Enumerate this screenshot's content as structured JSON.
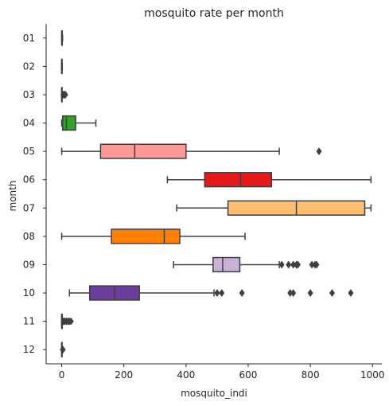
{
  "chart_data": {
    "type": "boxplot",
    "orientation": "horizontal",
    "title": "mosquito rate per month",
    "xlabel": "mosquito_indi",
    "ylabel": "month",
    "xlim": [
      -50,
      1030
    ],
    "xticks": [
      0,
      200,
      400,
      600,
      800,
      1000
    ],
    "categories": [
      "01",
      "02",
      "03",
      "04",
      "05",
      "06",
      "07",
      "08",
      "09",
      "10",
      "11",
      "12"
    ],
    "grid": false,
    "boxes": [
      {
        "month": "01",
        "whisker_low": 0,
        "q1": 0,
        "median": 1,
        "q3": 2,
        "whisker_high": 3,
        "outliers": [],
        "color": "#4d4d4d"
      },
      {
        "month": "02",
        "whisker_low": 0,
        "q1": 0,
        "median": 0,
        "q3": 1,
        "whisker_high": 2,
        "outliers": [],
        "color": "#4d4d4d"
      },
      {
        "month": "03",
        "whisker_low": 0,
        "q1": 0,
        "median": 0,
        "q3": 1,
        "whisker_high": 2,
        "outliers": [
          5,
          8,
          10,
          12
        ],
        "color": "#4d4d4d"
      },
      {
        "month": "04",
        "whisker_low": 0,
        "q1": 3,
        "median": 15,
        "q3": 45,
        "whisker_high": 110,
        "outliers": [],
        "color": "#33a02c"
      },
      {
        "month": "05",
        "whisker_low": 0,
        "q1": 125,
        "median": 235,
        "q3": 400,
        "whisker_high": 700,
        "outliers": [
          828
        ],
        "color": "#fb9a99"
      },
      {
        "month": "06",
        "whisker_low": 340,
        "q1": 460,
        "median": 575,
        "q3": 675,
        "whisker_high": 995,
        "outliers": [],
        "color": "#e31a1c"
      },
      {
        "month": "07",
        "whisker_low": 370,
        "q1": 535,
        "median": 755,
        "q3": 975,
        "whisker_high": 995,
        "outliers": [],
        "color": "#fdbf6f"
      },
      {
        "month": "08",
        "whisker_low": 0,
        "q1": 160,
        "median": 330,
        "q3": 380,
        "whisker_high": 590,
        "outliers": [],
        "color": "#ff7f00"
      },
      {
        "month": "09",
        "whisker_low": 360,
        "q1": 487,
        "median": 518,
        "q3": 573,
        "whisker_high": 700,
        "outliers": [
          708,
          730,
          745,
          755,
          760,
          805,
          815,
          820
        ],
        "color": "#cab2d6"
      },
      {
        "month": "10",
        "whisker_low": 25,
        "q1": 90,
        "median": 170,
        "q3": 250,
        "whisker_high": 490,
        "outliers": [
          500,
          515,
          580,
          735,
          745,
          800,
          870,
          930
        ],
        "color": "#6a3d9a"
      },
      {
        "month": "11",
        "whisker_low": 0,
        "q1": 0,
        "median": 0,
        "q3": 2,
        "whisker_high": 4,
        "outliers": [
          6,
          10,
          15,
          20,
          25,
          30
        ],
        "color": "#4d4d4d"
      },
      {
        "month": "12",
        "whisker_low": 0,
        "q1": 0,
        "median": 0,
        "q3": 1,
        "whisker_high": 2,
        "outliers": [
          3,
          4
        ],
        "color": "#4d4d4d"
      }
    ]
  }
}
